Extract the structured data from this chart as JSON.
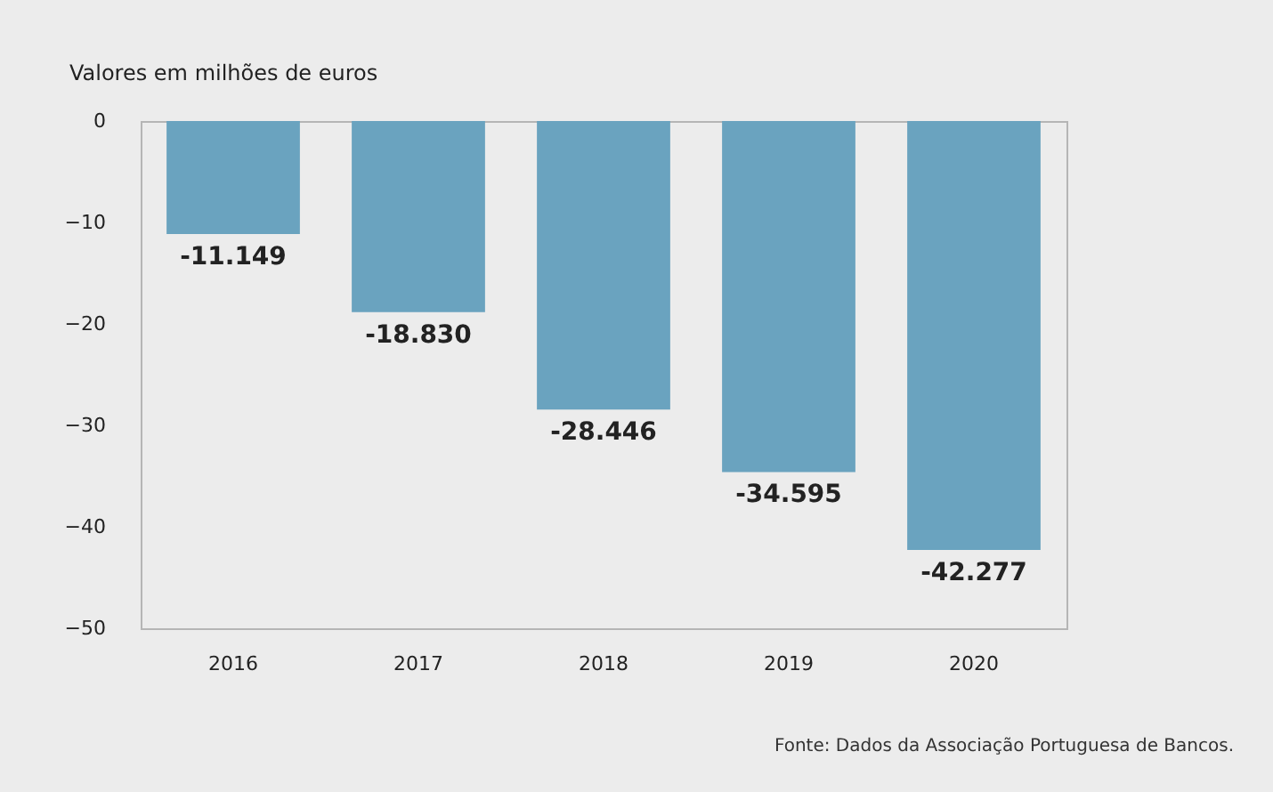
{
  "chart_data": {
    "type": "bar",
    "title": "Valores em milhões de euros",
    "categories": [
      "2016",
      "2017",
      "2018",
      "2019",
      "2020"
    ],
    "values": [
      -11.149,
      -18.83,
      -28.446,
      -34.595,
      -42.277
    ],
    "color": "#6aa3bf",
    "ylim": [
      -50,
      0
    ],
    "yticks": [
      0,
      -10,
      -20,
      -30,
      -40,
      -50
    ],
    "value_labels": [
      "-11.149",
      "-18.830",
      "-28.446",
      "-34.595",
      "-42.277"
    ],
    "annotations": [
      "Fonte: Dados da Associação Portuguesa de Bancos."
    ]
  }
}
